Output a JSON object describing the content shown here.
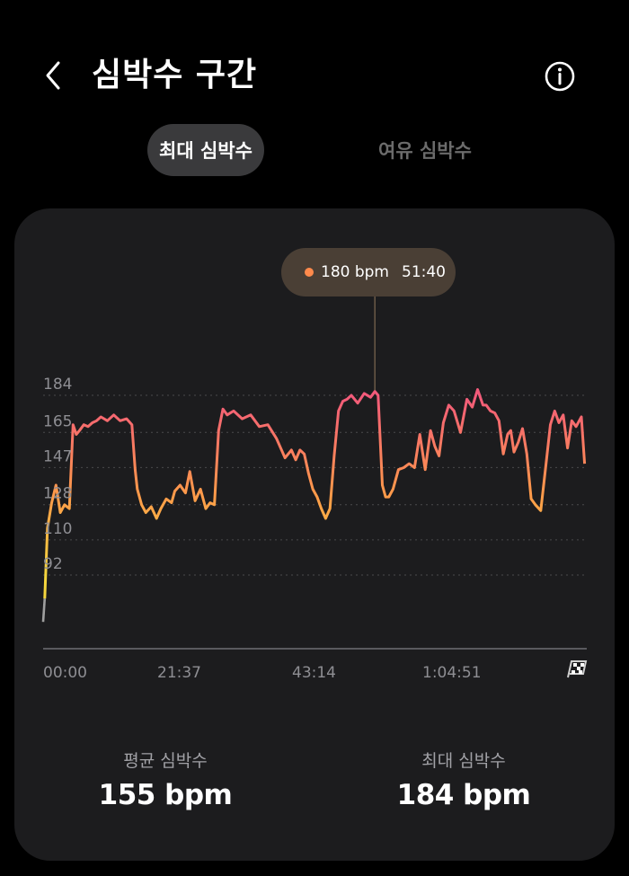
{
  "header": {
    "title": "심박수 구간"
  },
  "tabs": [
    {
      "label": "최대 심박수",
      "active": true
    },
    {
      "label": "여유 심박수",
      "active": false
    }
  ],
  "tooltip": {
    "bpm": "180 bpm",
    "time": "51:40"
  },
  "stats": {
    "avg_label": "평균 심박수",
    "avg_value": "155 bpm",
    "max_label": "최대 심박수",
    "max_value": "184 bpm"
  },
  "icons": {
    "back": "chevron-left-icon",
    "info": "info-icon",
    "finish": "checkered-flag-icon"
  },
  "colors": {
    "background": "#000000",
    "card": "#1c1c1e",
    "active_tab": "#3a3a3c",
    "tooltip_bg": "#4a3f35",
    "line_low": "#f5d63d",
    "line_mid": "#ff9a4a",
    "line_high": "#f25a7a"
  },
  "chart_data": {
    "type": "line",
    "title": "",
    "xlabel": "",
    "ylabel": "",
    "y_ticks": [
      "184",
      "165",
      "147",
      "128",
      "110",
      "92"
    ],
    "x_ticks": [
      "00:00",
      "21:37",
      "43:14",
      "1:04:51"
    ],
    "ylim": [
      58,
      200
    ],
    "xlim": [
      0,
      5080
    ],
    "grid": "dotted horizontal",
    "highlight": {
      "x": 3100,
      "y": 180,
      "label_bpm": "180 bpm",
      "label_time": "51:40"
    },
    "series": [
      {
        "x": [
          0,
          15,
          40,
          80,
          120,
          160,
          200,
          245,
          280,
          310,
          340,
          380,
          420,
          460,
          500,
          540,
          600,
          660,
          720,
          780,
          830,
          860,
          880,
          920,
          960,
          1010,
          1060,
          1100,
          1150,
          1200,
          1230,
          1280,
          1330,
          1370,
          1420,
          1470,
          1520,
          1560,
          1600,
          1640,
          1680,
          1720,
          1780,
          1860,
          1940,
          2020,
          2100,
          2180,
          2260,
          2320,
          2360,
          2400,
          2440,
          2480,
          2520,
          2560,
          2600,
          2640,
          2680,
          2720,
          2760,
          2800,
          2840,
          2880,
          2940,
          3000,
          3060,
          3100,
          3130,
          3170,
          3200,
          3230,
          3270,
          3320,
          3370,
          3420,
          3470,
          3520,
          3570,
          3620,
          3660,
          3700,
          3740,
          3790,
          3840,
          3900,
          3960,
          4010,
          4060,
          4110,
          4140,
          4180,
          4220,
          4260,
          4300,
          4340,
          4370,
          4400,
          4440,
          4480,
          4520,
          4560,
          4600,
          4650,
          4700,
          4740,
          4780,
          4820,
          4860,
          4900,
          4940,
          4980,
          5030,
          5060
        ],
        "values": [
          62,
          74,
          110,
          123,
          132,
          118,
          122,
          120,
          163,
          158,
          160,
          163,
          162,
          164,
          165,
          167,
          165,
          168,
          165,
          166,
          163,
          140,
          130,
          122,
          118,
          121,
          115,
          120,
          125,
          123,
          129,
          132,
          128,
          139,
          124,
          130,
          120,
          123,
          122,
          160,
          171,
          168,
          170,
          166,
          168,
          162,
          163,
          156,
          146,
          150,
          145,
          150,
          148,
          138,
          130,
          126,
          120,
          115,
          120,
          147,
          170,
          175,
          176,
          178,
          174,
          179,
          177,
          180,
          178,
          132,
          126,
          126,
          130,
          140,
          141,
          143,
          141,
          158,
          140,
          160,
          152,
          147,
          164,
          173,
          170,
          159,
          176,
          172,
          181,
          173,
          173,
          170,
          169,
          165,
          148,
          158,
          160,
          149,
          154,
          161,
          148,
          125,
          122,
          119,
          143,
          163,
          170,
          164,
          168,
          151,
          165,
          162,
          167,
          143
        ]
      }
    ]
  }
}
